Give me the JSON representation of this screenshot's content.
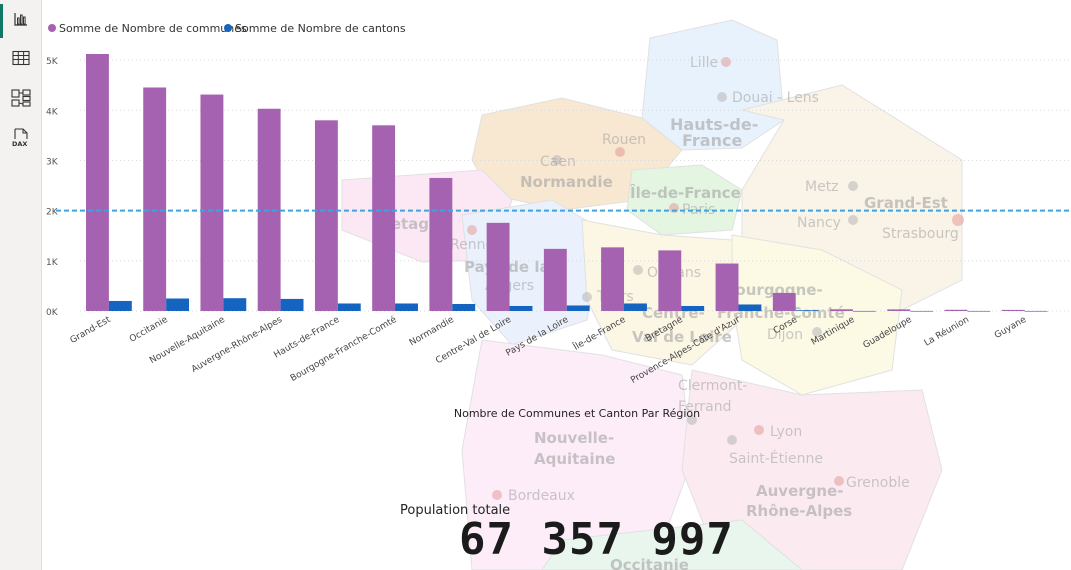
{
  "colors": {
    "series_communes": "#a562b0",
    "series_cantons": "#1565c0",
    "reference_line": "#3fa3e0",
    "gridline": "#d9d9d9",
    "rail_active": "#117865"
  },
  "rail": {
    "items": [
      {
        "name": "report-view-icon",
        "active": true
      },
      {
        "name": "table-view-icon",
        "active": false
      },
      {
        "name": "model-view-icon",
        "active": false
      },
      {
        "name": "dax-query-view-icon",
        "active": false
      }
    ]
  },
  "map": {
    "labels": [
      {
        "text": "Lille",
        "bold": false
      },
      {
        "text": "Douai - Lens",
        "bold": false
      },
      {
        "text": "Hauts-de-",
        "bold": true
      },
      {
        "text": "France",
        "bold": true
      },
      {
        "text": "Rouen",
        "bold": false
      },
      {
        "text": "Caen",
        "bold": false
      },
      {
        "text": "Normandie",
        "bold": true
      },
      {
        "text": "Île-de-France",
        "bold": true
      },
      {
        "text": "Paris",
        "bold": false
      },
      {
        "text": "Metz",
        "bold": false
      },
      {
        "text": "Grand-Est",
        "bold": true
      },
      {
        "text": "Nancy",
        "bold": false
      },
      {
        "text": "Strasbourg",
        "bold": false
      },
      {
        "text": "Bretagne",
        "bold": true
      },
      {
        "text": "Rennes",
        "bold": false
      },
      {
        "text": "Pays de la",
        "bold": true
      },
      {
        "text": "Angers",
        "bold": false
      },
      {
        "text": "Tours",
        "bold": false
      },
      {
        "text": "Orléans",
        "bold": false
      },
      {
        "text": "Centre-",
        "bold": true
      },
      {
        "text": "Val de Loire",
        "bold": true
      },
      {
        "text": "Bourgogne-",
        "bold": true
      },
      {
        "text": "Franche-Comté",
        "bold": true
      },
      {
        "text": "Dijon",
        "bold": false
      },
      {
        "text": "Clermont-",
        "bold": false
      },
      {
        "text": "Ferrand",
        "bold": false
      },
      {
        "text": "Lyon",
        "bold": false
      },
      {
        "text": "Saint-Étienne",
        "bold": false
      },
      {
        "text": "Nouvelle-",
        "bold": true
      },
      {
        "text": "Aquitaine",
        "bold": true
      },
      {
        "text": "Bordeaux",
        "bold": false
      },
      {
        "text": "Auvergne-",
        "bold": true
      },
      {
        "text": "Rhône-Alpes",
        "bold": true
      },
      {
        "text": "Grenoble",
        "bold": false
      },
      {
        "text": "Occitanie",
        "bold": true
      }
    ]
  },
  "chart_data": {
    "type": "bar",
    "title": "Nombre de Communes et Canton Par Région",
    "xlabel": "Nombre de Communes et Canton Par Région",
    "legend_position": "top-left",
    "grid": true,
    "ylim": [
      0,
      5400
    ],
    "yticks": [
      {
        "value": 0,
        "label": "0K"
      },
      {
        "value": 1000,
        "label": "1K"
      },
      {
        "value": 2000,
        "label": "2K"
      },
      {
        "value": 3000,
        "label": "3K"
      },
      {
        "value": 4000,
        "label": "4K"
      },
      {
        "value": 5000,
        "label": "5K"
      }
    ],
    "reference_line": 2000,
    "categories": [
      "Grand-Est",
      "Occitanie",
      "Nouvelle-Aquitaine",
      "Auvergne-Rhône-Alpes",
      "Hauts-de-France",
      "Bourgogne-Franche-Comté",
      "Normandie",
      "Centre-Val de Loire",
      "Pays de la Loire",
      "Île-de-France",
      "Bretagne",
      "Provence-Alpes-Côte d'Azur",
      "Corse",
      "Martinique",
      "Guadeloupe",
      "La Réunion",
      "Guyane"
    ],
    "series": [
      {
        "name": "Somme de Nombre de communes",
        "values": [
          5121,
          4454,
          4313,
          4030,
          3800,
          3700,
          2651,
          1757,
          1238,
          1268,
          1208,
          946,
          360,
          34,
          32,
          24,
          22
        ]
      },
      {
        "name": "Somme de Nombre de cantons",
        "values": [
          200,
          249,
          255,
          241,
          150,
          150,
          140,
          100,
          110,
          150,
          100,
          130,
          15,
          1,
          1,
          1,
          1
        ]
      }
    ]
  },
  "card": {
    "label": "Population totale",
    "value": "67 357 997"
  }
}
